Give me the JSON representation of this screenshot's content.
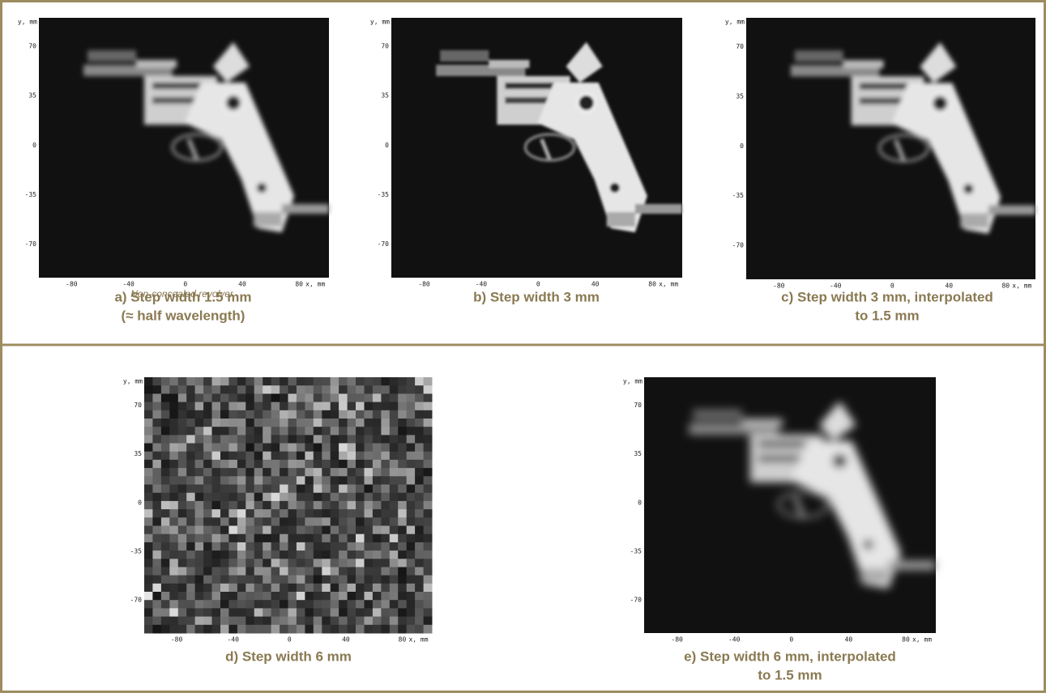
{
  "figure": {
    "panels": [
      {
        "image_label": {
          "y": "y, mm",
          "x": "x, mm"
        },
        "yticks": [
          70,
          35,
          0,
          -35,
          -70
        ],
        "xticks": [
          -80,
          -40,
          0,
          40,
          80
        ],
        "note": "Non-concealed revolver.",
        "caption": [
          "a) Step width 1.5 mm",
          "(≈ half wavelength)"
        ]
      },
      {
        "image_label": {
          "y": "y, mm",
          "x": "x, mm"
        },
        "yticks": [
          70,
          35,
          0,
          -35,
          -70
        ],
        "xticks": [
          -80,
          -40,
          0,
          40,
          80
        ],
        "caption": [
          "b) Step width 3 mm"
        ]
      },
      {
        "image_label": {
          "y": "y, mm",
          "x": "x, mm"
        },
        "yticks": [
          70,
          35,
          0,
          -35,
          -70
        ],
        "xticks": [
          -80,
          -40,
          0,
          40,
          80
        ],
        "caption": [
          "c) Step width 3 mm, interpolated",
          "to 1.5 mm"
        ]
      },
      {
        "image_label": {
          "y": "y, mm",
          "x": "x, mm"
        },
        "yticks": [
          70,
          35,
          0,
          -35,
          -70
        ],
        "xticks": [
          -80,
          -40,
          0,
          40,
          80
        ],
        "caption": [
          "d) Step width 6 mm"
        ]
      },
      {
        "image_label": {
          "y": "y, mm",
          "x": "x, mm"
        },
        "yticks": [
          70,
          35,
          0,
          -35,
          -70
        ],
        "xticks": [
          -80,
          -40,
          0,
          40,
          80
        ],
        "caption": [
          "e) Step width 6 mm, interpolated",
          "to 1.5 mm"
        ]
      }
    ]
  }
}
